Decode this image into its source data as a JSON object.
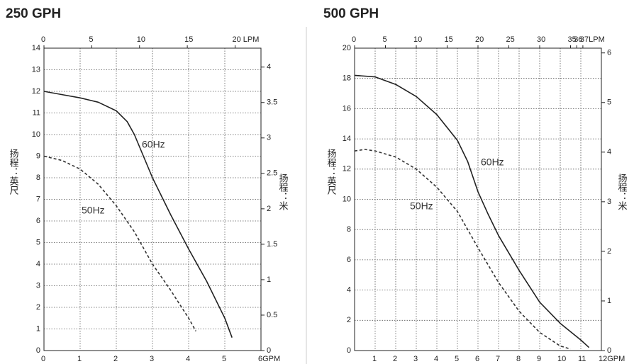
{
  "chart_data": [
    {
      "type": "line",
      "title": "250 GPH",
      "y_label": "扬程：英尺",
      "y2_label": "扬程：米",
      "grid": true,
      "xlim": [
        0,
        6
      ],
      "xticks": [
        0,
        1,
        2,
        3,
        4,
        5,
        {
          "value": 6,
          "label": "6GPM"
        }
      ],
      "x2lim": [
        0,
        22.71
      ],
      "x2ticks": [
        0,
        5,
        10,
        15,
        {
          "value": 20,
          "label": "20 LPM"
        }
      ],
      "ylim": [
        0,
        14
      ],
      "yticks": [
        0,
        1,
        2,
        3,
        4,
        5,
        6,
        7,
        8,
        9,
        10,
        11,
        12,
        13,
        14
      ],
      "y2lim": [
        0,
        4.267
      ],
      "y2ticks": [
        0,
        0.5,
        1,
        1.5,
        2,
        2.5,
        3,
        3.5,
        4
      ],
      "series": [
        {
          "name": "60Hz",
          "color": "#222222",
          "dashed": false,
          "x": [
            0,
            0.5,
            1,
            1.5,
            2,
            2.3,
            2.5,
            3,
            3.5,
            4,
            4.5,
            5,
            5.2
          ],
          "values": [
            12,
            11.85,
            11.7,
            11.5,
            11.1,
            10.6,
            10,
            8,
            6.3,
            4.7,
            3.2,
            1.5,
            0.6
          ]
        },
        {
          "name": "50Hz",
          "color": "#333333",
          "dashed": true,
          "x": [
            0,
            0.5,
            1,
            1.5,
            2,
            2.5,
            3,
            3.5,
            4,
            4.2
          ],
          "values": [
            9,
            8.8,
            8.4,
            7.7,
            6.7,
            5.5,
            4,
            2.8,
            1.5,
            0.9
          ]
        }
      ]
    },
    {
      "type": "line",
      "title": "500 GPH",
      "y_label": "扬程：英尺",
      "y2_label": "扬程：米",
      "grid": true,
      "xlim": [
        0,
        12
      ],
      "xticks": [
        1,
        2,
        3,
        4,
        5,
        6,
        7,
        8,
        9,
        10,
        11,
        {
          "value": 12,
          "label": "12GPM"
        }
      ],
      "x2lim": [
        0,
        40
      ],
      "x2ticks": [
        0,
        5,
        10,
        15,
        20,
        25,
        30,
        35,
        36,
        {
          "value": 37,
          "label": "37LPM"
        }
      ],
      "ylim": [
        0,
        20
      ],
      "yticks": [
        0,
        2,
        4,
        6,
        8,
        10,
        12,
        14,
        16,
        18,
        20
      ],
      "y2lim": [
        0,
        6.096
      ],
      "y2ticks": [
        0,
        1,
        2,
        3,
        4,
        5,
        6
      ],
      "series": [
        {
          "name": "60Hz",
          "color": "#222222",
          "dashed": false,
          "x": [
            0,
            1,
            2,
            3,
            4,
            5,
            5.5,
            6,
            6.5,
            7,
            8,
            9,
            10,
            11,
            11.4
          ],
          "values": [
            18.2,
            18.1,
            17.6,
            16.8,
            15.6,
            13.9,
            12.5,
            10.5,
            9,
            7.6,
            5.3,
            3.2,
            1.8,
            0.7,
            0.2
          ]
        },
        {
          "name": "50Hz",
          "color": "#333333",
          "dashed": true,
          "x": [
            0,
            0.5,
            1,
            2,
            3,
            4,
            5,
            6,
            7,
            8,
            9,
            10,
            10.5
          ],
          "values": [
            13.2,
            13.3,
            13.2,
            12.8,
            12,
            10.8,
            9.2,
            6.8,
            4.5,
            2.6,
            1.2,
            0.3,
            0.1
          ]
        }
      ]
    }
  ]
}
